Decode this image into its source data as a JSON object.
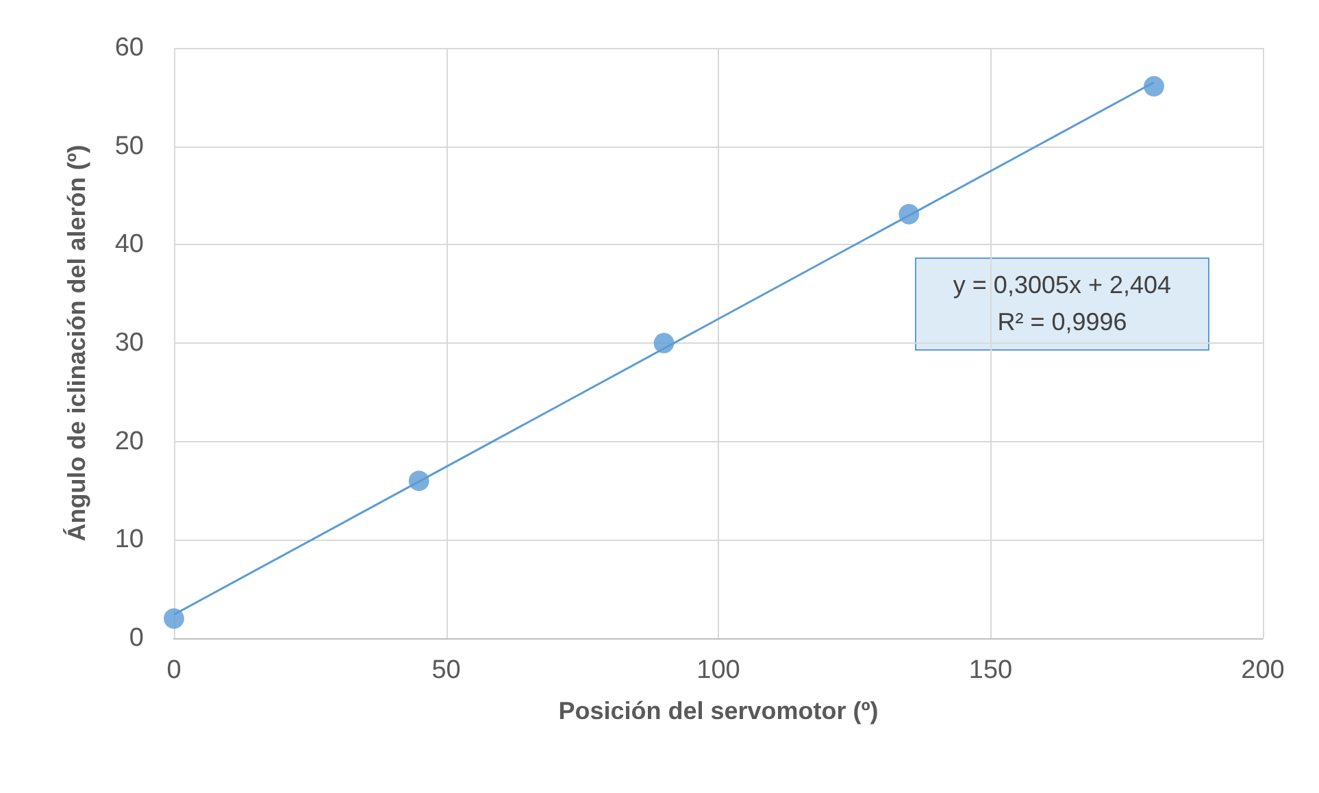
{
  "chart_data": {
    "type": "scatter",
    "xlabel": "Posición del servomotor (º)",
    "ylabel": "Ángulo de iclinación del alerón (º)",
    "x": [
      0,
      45,
      90,
      135,
      180
    ],
    "series": [
      {
        "color": "#5b9bd5",
        "values": [
          2,
          16,
          30,
          43.1,
          56.1
        ],
        "marker": "circle"
      },
      {
        "type": "line",
        "color": "#5b9bd5",
        "x": [
          0,
          180
        ],
        "values": [
          2.4,
          56.5
        ],
        "marker": "none"
      }
    ],
    "xlim": [
      0,
      200
    ],
    "xticks": [
      0,
      50,
      100,
      150,
      200
    ],
    "ylim": [
      0,
      60
    ],
    "yticks": [
      0,
      10,
      20,
      30,
      40,
      50,
      60
    ],
    "grid": true,
    "annotations": [
      "y = 0,3005x + 2,404",
      "R² = 0,9996"
    ]
  }
}
